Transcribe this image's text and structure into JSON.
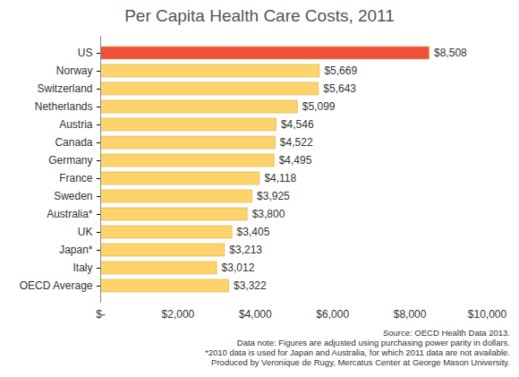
{
  "chart_data": {
    "type": "bar",
    "title": "Per Capita Health Care Costs, 2011",
    "orientation": "horizontal",
    "categories": [
      "US",
      "Norway",
      "Switzerland",
      "Netherlands",
      "Austria",
      "Canada",
      "Germany",
      "France",
      "Sweden",
      "Australia*",
      "UK",
      "Japan*",
      "Italy",
      "OECD Average"
    ],
    "values": [
      8508,
      5669,
      5643,
      5099,
      4546,
      4522,
      4495,
      4118,
      3925,
      3800,
      3405,
      3213,
      3012,
      3322
    ],
    "value_labels": [
      "$8,508",
      "$5,669",
      "$5,643",
      "$5,099",
      "$4,546",
      "$4,522",
      "$4,495",
      "$4,118",
      "$3,925",
      "$3,800",
      "$3,405",
      "$3,213",
      "$3,012",
      "$3,322"
    ],
    "colors": [
      "#f0503c",
      "#fdd46c",
      "#fdd46c",
      "#fdd46c",
      "#fdd46c",
      "#fdd46c",
      "#fdd46c",
      "#fdd46c",
      "#fdd46c",
      "#fdd46c",
      "#fdd46c",
      "#fdd46c",
      "#fdd46c",
      "#fdd46c"
    ],
    "xlim": [
      0,
      10000
    ],
    "xticks": [
      {
        "value": 0,
        "label": "$-"
      },
      {
        "value": 2000,
        "label": "$2,000"
      },
      {
        "value": 4000,
        "label": "$4,000"
      },
      {
        "value": 6000,
        "label": "$6,000"
      },
      {
        "value": 8000,
        "label": "$8,000"
      },
      {
        "value": 10000,
        "label": "$10,000"
      }
    ],
    "grid": false,
    "data_labels": true,
    "annotations": [
      "Source: OECD Health Data 2013.",
      "Data note: Figures are adjusted using purchasing power parity in dollars.",
      "*2010 data is used for Japan and Australia, for which 2011 data are not available.",
      "Produced by Veronique de Rugy, Mercatus Center at George Mason University."
    ]
  }
}
